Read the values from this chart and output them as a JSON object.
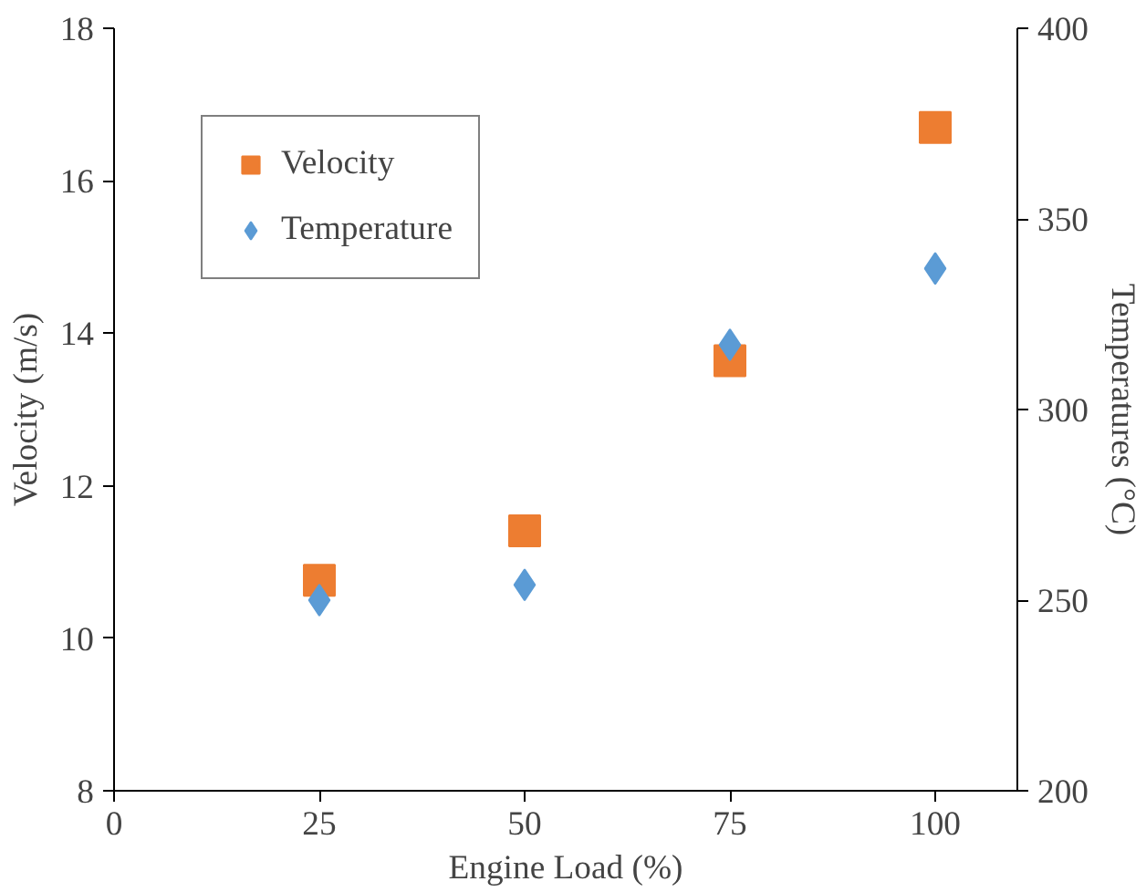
{
  "chart_data": {
    "type": "scatter",
    "xlabel": "Engine Load (%)",
    "ylabel": "Velocity (m/s)",
    "y2label": "Temperatures (°C)",
    "x": [
      25,
      50,
      75,
      100
    ],
    "series": [
      {
        "name": "Velocity",
        "color": "#ed7d31",
        "marker": "square",
        "values": [
          10.76,
          11.41,
          13.64,
          16.7
        ]
      },
      {
        "name": "Temperature",
        "color": "#5b9bd5",
        "marker": "diamond",
        "axis": "y2",
        "values": [
          250,
          254,
          317,
          337
        ]
      }
    ],
    "xlim": [
      0,
      110
    ],
    "xticks": [
      0,
      25,
      50,
      75,
      100
    ],
    "ylim": [
      8,
      18
    ],
    "yticks": [
      8,
      10,
      12,
      14,
      16,
      18
    ],
    "y2lim": [
      200,
      400
    ],
    "y2ticks": [
      200,
      250,
      300,
      350,
      400
    ],
    "grid": false,
    "legend": "top left"
  }
}
